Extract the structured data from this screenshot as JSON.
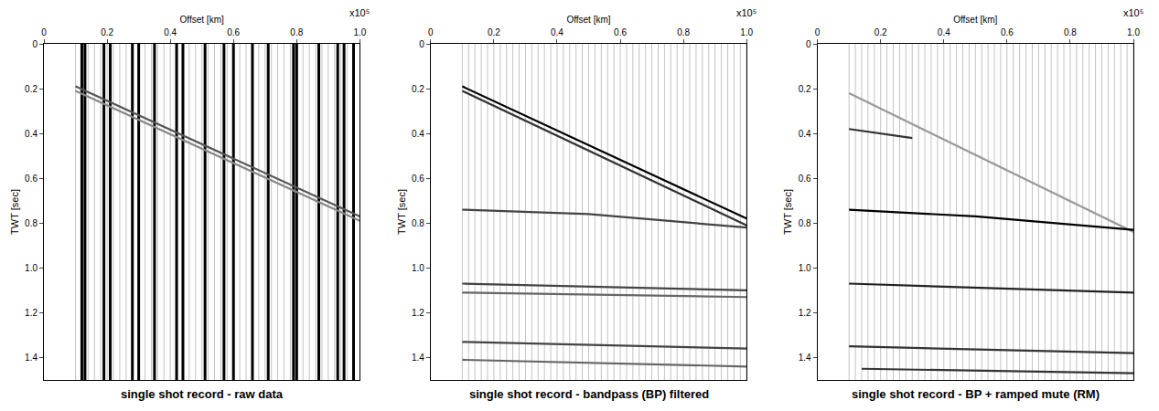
{
  "chart_data": [
    {
      "type": "line",
      "title": "single shot record - raw data",
      "x_label": "Offset [km]",
      "y_label": "TWT [sec]",
      "annotations": [
        {
          "text": "x10⁵"
        }
      ],
      "xlim": [
        0,
        1.0
      ],
      "xticks": [
        0,
        0.2,
        0.4,
        0.6,
        0.8,
        {
          "value": 1.0,
          "label": "1.0"
        }
      ],
      "ylim": [
        1.5,
        0
      ],
      "yticks": [
        0,
        0.2,
        0.4,
        0.6,
        0.8,
        {
          "value": 1.0,
          "label": "1.0"
        },
        1.2,
        1.4
      ],
      "trace_offsets": [
        0.1,
        0.12,
        0.14,
        0.16,
        0.18,
        0.2,
        0.22,
        0.24,
        0.26,
        0.28,
        0.3,
        0.32,
        0.34,
        0.36,
        0.38,
        0.4,
        0.42,
        0.44,
        0.46,
        0.48,
        0.5,
        0.52,
        0.54,
        0.56,
        0.58,
        0.6,
        0.62,
        0.64,
        0.66,
        0.68,
        0.7,
        0.72,
        0.74,
        0.76,
        0.78,
        0.8,
        0.82,
        0.84,
        0.86,
        0.88,
        0.9,
        0.92,
        0.94,
        0.96,
        0.98,
        1.0
      ],
      "noisy_traces": [
        0.12,
        0.13,
        0.19,
        0.21,
        0.28,
        0.3,
        0.35,
        0.42,
        0.44,
        0.51,
        0.57,
        0.6,
        0.66,
        0.71,
        0.79,
        0.8,
        0.87,
        0.93,
        0.95,
        0.98
      ],
      "series": [
        {
          "color": "#555555",
          "x": [
            0.1,
            1.0
          ],
          "y": [
            0.19,
            0.77
          ]
        },
        {
          "color": "#888888",
          "x": [
            0.1,
            1.0
          ],
          "y": [
            0.21,
            0.79
          ]
        }
      ]
    },
    {
      "type": "line",
      "title": "single shot record - bandpass (BP) filtered",
      "x_label": "Offset [km]",
      "y_label": "TWT [sec]",
      "annotations": [
        {
          "text": "x10⁵"
        }
      ],
      "xlim": [
        0,
        1.0
      ],
      "xticks": [
        0,
        0.2,
        0.4,
        0.6,
        0.8,
        {
          "value": 1.0,
          "label": "1.0"
        }
      ],
      "ylim": [
        1.5,
        0
      ],
      "yticks": [
        0,
        0.2,
        0.4,
        0.6,
        0.8,
        {
          "value": 1.0,
          "label": "1.0"
        },
        1.2,
        1.4
      ],
      "trace_offsets": [
        0.1,
        0.12,
        0.14,
        0.16,
        0.18,
        0.2,
        0.22,
        0.24,
        0.26,
        0.28,
        0.3,
        0.32,
        0.34,
        0.36,
        0.38,
        0.4,
        0.42,
        0.44,
        0.46,
        0.48,
        0.5,
        0.52,
        0.54,
        0.56,
        0.58,
        0.6,
        0.62,
        0.64,
        0.66,
        0.68,
        0.7,
        0.72,
        0.74,
        0.76,
        0.78,
        0.8,
        0.82,
        0.84,
        0.86,
        0.88,
        0.9,
        0.92,
        0.94,
        0.96,
        0.98,
        1.0
      ],
      "noisy_traces": [],
      "series": [
        {
          "color": "#000000",
          "x": [
            0.1,
            1.0
          ],
          "y": [
            0.19,
            0.78
          ]
        },
        {
          "color": "#333333",
          "x": [
            0.1,
            1.0
          ],
          "y": [
            0.21,
            0.81
          ]
        },
        {
          "color": "#444444",
          "x": [
            0.1,
            0.5,
            1.0
          ],
          "y": [
            0.74,
            0.76,
            0.82
          ]
        },
        {
          "color": "#444444",
          "x": [
            0.1,
            1.0
          ],
          "y": [
            1.07,
            1.1
          ]
        },
        {
          "color": "#666666",
          "x": [
            0.1,
            1.0
          ],
          "y": [
            1.11,
            1.13
          ]
        },
        {
          "color": "#444444",
          "x": [
            0.1,
            1.0
          ],
          "y": [
            1.33,
            1.36
          ]
        },
        {
          "color": "#666666",
          "x": [
            0.1,
            1.0
          ],
          "y": [
            1.41,
            1.44
          ]
        }
      ]
    },
    {
      "type": "line",
      "title": "single shot record - BP + ramped mute (RM)",
      "x_label": "Offset [km]",
      "y_label": "TWT [sec]",
      "annotations": [
        {
          "text": "x10⁵"
        }
      ],
      "xlim": [
        0,
        1.0
      ],
      "xticks": [
        0,
        0.2,
        0.4,
        0.6,
        0.8,
        {
          "value": 1.0,
          "label": "1.0"
        }
      ],
      "ylim": [
        1.5,
        0
      ],
      "yticks": [
        0,
        0.2,
        0.4,
        0.6,
        0.8,
        {
          "value": 1.0,
          "label": "1.0"
        },
        1.2,
        1.4
      ],
      "trace_offsets": [
        0.1,
        0.12,
        0.14,
        0.16,
        0.18,
        0.2,
        0.22,
        0.24,
        0.26,
        0.28,
        0.3,
        0.32,
        0.34,
        0.36,
        0.38,
        0.4,
        0.42,
        0.44,
        0.46,
        0.48,
        0.5,
        0.52,
        0.54,
        0.56,
        0.58,
        0.6,
        0.62,
        0.64,
        0.66,
        0.68,
        0.7,
        0.72,
        0.74,
        0.76,
        0.78,
        0.8,
        0.82,
        0.84,
        0.86,
        0.88,
        0.9,
        0.92,
        0.94,
        0.96,
        0.98,
        1.0
      ],
      "noisy_traces": [],
      "series": [
        {
          "color": "#999999",
          "x": [
            0.1,
            1.0
          ],
          "y": [
            0.22,
            0.84
          ]
        },
        {
          "color": "#333333",
          "x": [
            0.1,
            0.3
          ],
          "y": [
            0.38,
            0.42
          ]
        },
        {
          "color": "#000000",
          "x": [
            0.1,
            0.5,
            1.0
          ],
          "y": [
            0.74,
            0.77,
            0.83
          ]
        },
        {
          "color": "#222222",
          "x": [
            0.1,
            1.0
          ],
          "y": [
            1.07,
            1.11
          ]
        },
        {
          "color": "#333333",
          "x": [
            0.1,
            1.0
          ],
          "y": [
            1.35,
            1.38
          ]
        },
        {
          "color": "#333333",
          "x": [
            0.14,
            1.0
          ],
          "y": [
            1.45,
            1.47
          ]
        }
      ]
    }
  ]
}
